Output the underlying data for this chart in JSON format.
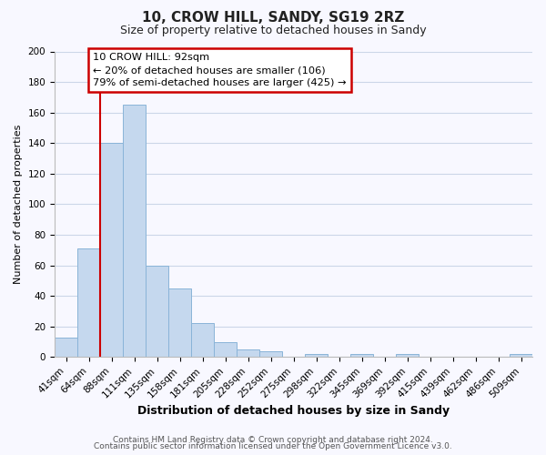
{
  "title_line1": "10, CROW HILL, SANDY, SG19 2RZ",
  "title_line2": "Size of property relative to detached houses in Sandy",
  "xlabel": "Distribution of detached houses by size in Sandy",
  "ylabel": "Number of detached properties",
  "bar_labels": [
    "41sqm",
    "64sqm",
    "88sqm",
    "111sqm",
    "135sqm",
    "158sqm",
    "181sqm",
    "205sqm",
    "228sqm",
    "252sqm",
    "275sqm",
    "298sqm",
    "322sqm",
    "345sqm",
    "369sqm",
    "392sqm",
    "415sqm",
    "439sqm",
    "462sqm",
    "486sqm",
    "509sqm"
  ],
  "bar_values": [
    13,
    71,
    140,
    165,
    60,
    45,
    22,
    10,
    5,
    4,
    0,
    2,
    0,
    2,
    0,
    2,
    0,
    0,
    0,
    0,
    2
  ],
  "bar_color": "#c5d8ee",
  "bar_edge_color": "#8ab4d8",
  "vline_x_pos": 2.0,
  "vline_color": "#cc0000",
  "ylim": [
    0,
    200
  ],
  "yticks": [
    0,
    20,
    40,
    60,
    80,
    100,
    120,
    140,
    160,
    180,
    200
  ],
  "annotation_text_line1": "10 CROW HILL: 92sqm",
  "annotation_text_line2": "← 20% of detached houses are smaller (106)",
  "annotation_text_line3": "79% of semi-detached houses are larger (425) →",
  "footer_line1": "Contains HM Land Registry data © Crown copyright and database right 2024.",
  "footer_line2": "Contains public sector information licensed under the Open Government Licence v3.0.",
  "background_color": "#f8f8ff",
  "grid_color": "#ccd6e8",
  "title_fontsize": 11,
  "subtitle_fontsize": 9,
  "xlabel_fontsize": 9,
  "ylabel_fontsize": 8,
  "tick_fontsize": 7.5,
  "footer_fontsize": 6.5
}
